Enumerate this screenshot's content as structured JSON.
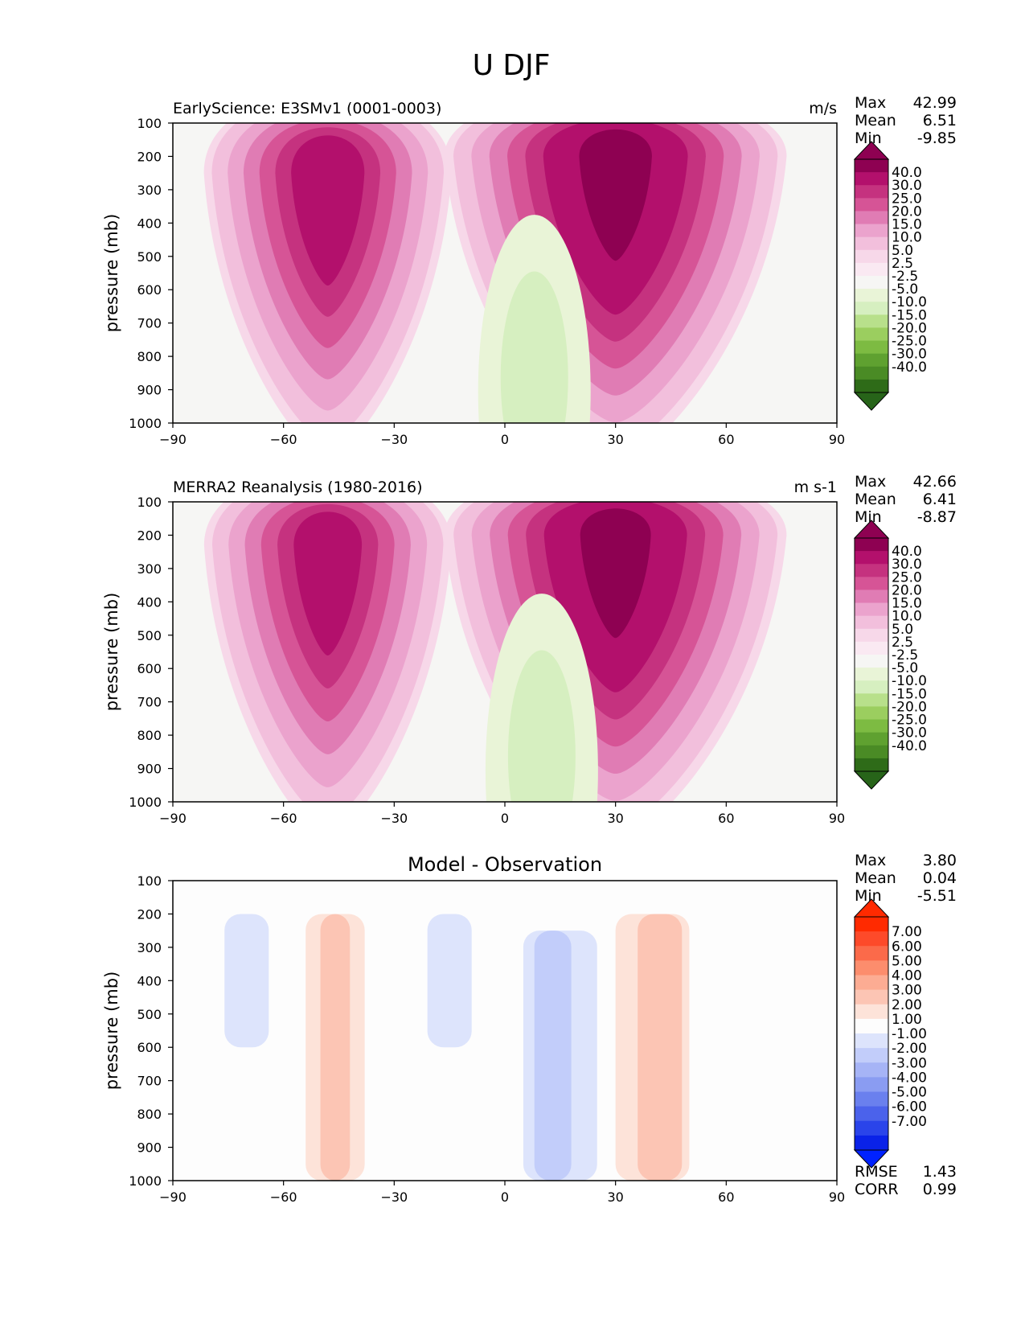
{
  "figure": {
    "title": "U DJF"
  },
  "chart_data": [
    {
      "type": "contour",
      "title": "EarlyScience: E3SMv1 (0001-0003)",
      "units": "m/s",
      "ylabel": "pressure (mb)",
      "xlabel": "",
      "xlim": [
        -90,
        90
      ],
      "ylim": [
        1000,
        100
      ],
      "x_ticks": [
        "−90",
        "−60",
        "−30",
        "0",
        "30",
        "60",
        "90"
      ],
      "y_ticks": [
        "100",
        "200",
        "300",
        "400",
        "500",
        "600",
        "700",
        "800",
        "900",
        "1000"
      ],
      "stats": [
        {
          "label": "Max",
          "value": "42.99"
        },
        {
          "label": "Mean",
          "value": "6.51"
        },
        {
          "label": "Min",
          "value": "-9.85"
        }
      ],
      "colorbar": {
        "labels": [
          "40.0",
          "30.0",
          "25.0",
          "20.0",
          "15.0",
          "10.0",
          "5.0",
          "2.5",
          "-2.5",
          "-5.0",
          "-10.0",
          "-15.0",
          "-20.0",
          "-25.0",
          "-30.0",
          "-40.0"
        ],
        "colors": [
          "#8e0152",
          "#b3106c",
          "#c5327f",
          "#d65496",
          "#e07cb4",
          "#eba3cd",
          "#f2bfdc",
          "#f7d8e9",
          "#fae9f2",
          "#f6f6f4",
          "#e9f4d7",
          "#d6efc0",
          "#b8e08b",
          "#9bce5f",
          "#7dbb42",
          "#5fa130",
          "#4a8b25",
          "#2e6b18"
        ],
        "ends": [
          "#8e0152",
          "#276419"
        ]
      },
      "background": "#f6f6f4",
      "jets": [
        {
          "lat": -48,
          "p": 250,
          "peak": 34.0
        },
        {
          "lat": 30,
          "p": 200,
          "peak": 42.99
        }
      ],
      "min_region": {
        "lat": 8,
        "p": 800,
        "value": -9.85
      }
    },
    {
      "type": "contour",
      "title": "MERRA2 Reanalysis (1980-2016)",
      "units": "m s-1",
      "ylabel": "pressure (mb)",
      "xlabel": "",
      "xlim": [
        -90,
        90
      ],
      "ylim": [
        1000,
        100
      ],
      "x_ticks": [
        "−90",
        "−60",
        "−30",
        "0",
        "30",
        "60",
        "90"
      ],
      "y_ticks": [
        "100",
        "200",
        "300",
        "400",
        "500",
        "600",
        "700",
        "800",
        "900",
        "1000"
      ],
      "stats": [
        {
          "label": "Max",
          "value": "42.66"
        },
        {
          "label": "Mean",
          "value": "6.41"
        },
        {
          "label": "Min",
          "value": "-8.87"
        }
      ],
      "colorbar": {
        "labels": [
          "40.0",
          "30.0",
          "25.0",
          "20.0",
          "15.0",
          "10.0",
          "5.0",
          "2.5",
          "-2.5",
          "-5.0",
          "-10.0",
          "-15.0",
          "-20.0",
          "-25.0",
          "-30.0",
          "-40.0"
        ],
        "colors": [
          "#8e0152",
          "#b3106c",
          "#c5327f",
          "#d65496",
          "#e07cb4",
          "#eba3cd",
          "#f2bfdc",
          "#f7d8e9",
          "#fae9f2",
          "#f6f6f4",
          "#e9f4d7",
          "#d6efc0",
          "#b8e08b",
          "#9bce5f",
          "#7dbb42",
          "#5fa130",
          "#4a8b25",
          "#2e6b18"
        ],
        "ends": [
          "#8e0152",
          "#276419"
        ]
      },
      "background": "#f6f6f4",
      "jets": [
        {
          "lat": -48,
          "p": 230,
          "peak": 33.0
        },
        {
          "lat": 30,
          "p": 200,
          "peak": 42.66
        }
      ],
      "min_region": {
        "lat": 10,
        "p": 800,
        "value": -8.87
      }
    },
    {
      "type": "contour",
      "title": "Model - Observation",
      "units": "",
      "ylabel": "pressure (mb)",
      "xlabel": "",
      "xlim": [
        -90,
        90
      ],
      "ylim": [
        1000,
        100
      ],
      "x_ticks": [
        "−90",
        "−60",
        "−30",
        "0",
        "30",
        "60",
        "90"
      ],
      "y_ticks": [
        "100",
        "200",
        "300",
        "400",
        "500",
        "600",
        "700",
        "800",
        "900",
        "1000"
      ],
      "stats": [
        {
          "label": "Max",
          "value": "3.80"
        },
        {
          "label": "Mean",
          "value": "0.04"
        },
        {
          "label": "Min",
          "value": "-5.51"
        }
      ],
      "extra_stats": [
        {
          "label": "RMSE",
          "value": "1.43"
        },
        {
          "label": "CORR",
          "value": "0.99"
        }
      ],
      "colorbar": {
        "labels": [
          "7.00",
          "6.00",
          "5.00",
          "4.00",
          "3.00",
          "2.00",
          "1.00",
          "-1.00",
          "-2.00",
          "-3.00",
          "-4.00",
          "-5.00",
          "-6.00",
          "-7.00"
        ],
        "colors": [
          "#ff2a00",
          "#fd4a2a",
          "#fb6a4a",
          "#fc8d6d",
          "#fcac93",
          "#fcc5b4",
          "#fde3d9",
          "#fdfdfd",
          "#dde4fc",
          "#c2cdfa",
          "#a6b4f6",
          "#8a9cf2",
          "#6a80ee",
          "#4b62eb",
          "#2a44ea",
          "#0a22e8"
        ],
        "ends": [
          "#ff2a00",
          "#0022ff"
        ]
      },
      "background": "#fdfdfd"
    }
  ]
}
